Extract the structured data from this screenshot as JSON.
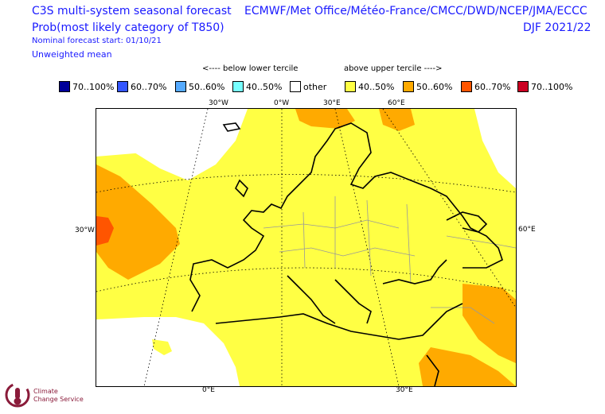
{
  "header": {
    "title_line1": "C3S multi-system seasonal forecast",
    "title_line2": "Prob(most likely category of T850)",
    "start": "Nominal forecast start: 01/10/21",
    "mean": "Unweighted mean",
    "centres": "ECMWF/Met Office/Météo-France/CMCC/DWD/NCEP/JMA/ECCC",
    "season": "DJF 2021/22"
  },
  "terciles": {
    "below": "<---- below lower tercile",
    "above": "above upper tercile ---->"
  },
  "legend": [
    {
      "label": "70..100%",
      "color": "#000099"
    },
    {
      "label": "60..70%",
      "color": "#3355ff"
    },
    {
      "label": "50..60%",
      "color": "#55aaff"
    },
    {
      "label": "40..50%",
      "color": "#77ffff"
    },
    {
      "label": "other",
      "color": "#ffffff"
    },
    {
      "label": "40..50%",
      "color": "#ffff44"
    },
    {
      "label": "50..60%",
      "color": "#ffaa00"
    },
    {
      "label": "60..70%",
      "color": "#ff5500"
    },
    {
      "label": "70..100%",
      "color": "#cc0022"
    }
  ],
  "axes": {
    "top": [
      "30°W",
      "0°W",
      "30°E",
      "60°E"
    ],
    "left": "30°W",
    "right": "60°E",
    "bottom": [
      "0°E",
      "30°E"
    ]
  },
  "logo": {
    "line1": "Climate",
    "line2": "Change Service"
  }
}
